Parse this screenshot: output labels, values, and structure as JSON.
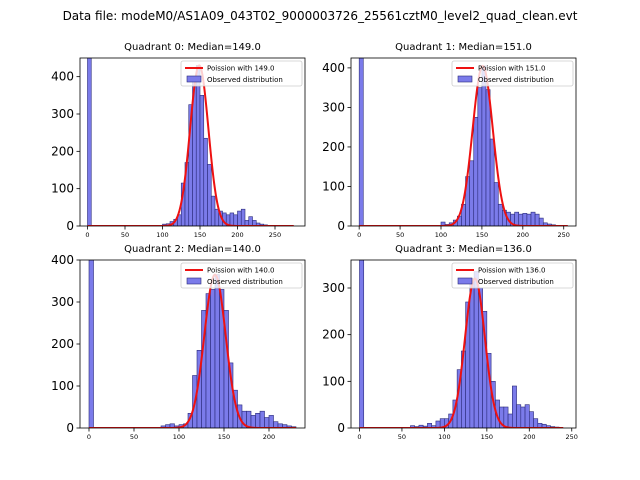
{
  "figure": {
    "suptitle": "Data file: modeM0/AS1A09_043T02_9000003726_25561cztM0_level2_quad_clean.evt"
  },
  "colors": {
    "bar_fill": "#7b7bea",
    "bar_edge": "#2b2b7a",
    "line": "#ee1111"
  },
  "chart_data": [
    {
      "type": "bar",
      "title": "Quadrant 0: Median=149.0",
      "legend": [
        "Poission with 149.0",
        "Observed distribution"
      ],
      "legend_position": "top-right",
      "xlim": [
        -10,
        290
      ],
      "ylim": [
        0,
        450
      ],
      "xticks": [
        0,
        50,
        100,
        150,
        200,
        250
      ],
      "yticks": [
        0,
        100,
        200,
        300,
        400
      ],
      "bin_width": 5,
      "bins": [
        [
          0,
          450
        ],
        [
          100,
          5
        ],
        [
          105,
          6
        ],
        [
          110,
          12
        ],
        [
          115,
          18
        ],
        [
          120,
          30
        ],
        [
          125,
          115
        ],
        [
          130,
          170
        ],
        [
          135,
          325
        ],
        [
          140,
          395
        ],
        [
          145,
          430
        ],
        [
          150,
          350
        ],
        [
          155,
          235
        ],
        [
          160,
          165
        ],
        [
          165,
          80
        ],
        [
          170,
          45
        ],
        [
          175,
          40
        ],
        [
          180,
          35
        ],
        [
          185,
          30
        ],
        [
          190,
          35
        ],
        [
          195,
          30
        ],
        [
          200,
          40
        ],
        [
          205,
          45
        ],
        [
          210,
          15
        ],
        [
          215,
          25
        ],
        [
          220,
          15
        ],
        [
          225,
          8
        ],
        [
          230,
          5
        ],
        [
          235,
          3
        ]
      ],
      "poisson_mean": 149.0,
      "poisson_peak": 430,
      "poisson_range": [
        0,
        275
      ]
    },
    {
      "type": "bar",
      "title": "Quadrant 1: Median=151.0",
      "legend": [
        "Poission with 151.0",
        "Observed distribution"
      ],
      "legend_position": "top-right",
      "xlim": [
        -10,
        265
      ],
      "ylim": [
        0,
        425
      ],
      "xticks": [
        0,
        50,
        100,
        150,
        200,
        250
      ],
      "yticks": [
        0,
        100,
        200,
        300,
        400
      ],
      "bin_width": 5,
      "bins": [
        [
          0,
          425
        ],
        [
          100,
          10
        ],
        [
          105,
          4
        ],
        [
          110,
          8
        ],
        [
          115,
          15
        ],
        [
          120,
          25
        ],
        [
          125,
          55
        ],
        [
          130,
          125
        ],
        [
          135,
          165
        ],
        [
          140,
          275
        ],
        [
          145,
          350
        ],
        [
          150,
          405
        ],
        [
          155,
          345
        ],
        [
          160,
          220
        ],
        [
          165,
          110
        ],
        [
          170,
          55
        ],
        [
          175,
          40
        ],
        [
          180,
          35
        ],
        [
          185,
          30
        ],
        [
          190,
          35
        ],
        [
          195,
          30
        ],
        [
          200,
          32
        ],
        [
          205,
          30
        ],
        [
          210,
          35
        ],
        [
          215,
          30
        ],
        [
          220,
          20
        ],
        [
          225,
          8
        ],
        [
          230,
          5
        ],
        [
          235,
          3
        ]
      ],
      "poisson_mean": 151.0,
      "poisson_peak": 405,
      "poisson_range": [
        0,
        255
      ]
    },
    {
      "type": "bar",
      "title": "Quadrant 2: Median=140.0",
      "legend": [
        "Poission with 140.0",
        "Observed distribution"
      ],
      "legend_position": "top-right",
      "xlim": [
        -10,
        240
      ],
      "ylim": [
        0,
        400
      ],
      "xticks": [
        0,
        50,
        100,
        150,
        200
      ],
      "yticks": [
        0,
        100,
        200,
        300,
        400
      ],
      "bin_width": 5,
      "bins": [
        [
          0,
          400
        ],
        [
          80,
          5
        ],
        [
          85,
          8
        ],
        [
          90,
          10
        ],
        [
          95,
          5
        ],
        [
          100,
          8
        ],
        [
          105,
          10
        ],
        [
          110,
          35
        ],
        [
          115,
          125
        ],
        [
          120,
          185
        ],
        [
          125,
          280
        ],
        [
          130,
          320
        ],
        [
          135,
          330
        ],
        [
          140,
          365
        ],
        [
          145,
          330
        ],
        [
          150,
          280
        ],
        [
          155,
          155
        ],
        [
          160,
          90
        ],
        [
          165,
          55
        ],
        [
          170,
          40
        ],
        [
          175,
          40
        ],
        [
          180,
          30
        ],
        [
          185,
          35
        ],
        [
          190,
          40
        ],
        [
          195,
          25
        ],
        [
          200,
          30
        ],
        [
          205,
          15
        ],
        [
          210,
          10
        ],
        [
          215,
          8
        ],
        [
          220,
          5
        ],
        [
          225,
          3
        ]
      ],
      "poisson_mean": 140.0,
      "poisson_peak": 365,
      "poisson_range": [
        0,
        230
      ]
    },
    {
      "type": "bar",
      "title": "Quadrant 3: Median=136.0",
      "legend": [
        "Poission with 136.0",
        "Observed distribution"
      ],
      "legend_position": "top-right",
      "xlim": [
        -10,
        255
      ],
      "ylim": [
        0,
        360
      ],
      "xticks": [
        0,
        50,
        100,
        150,
        200,
        250
      ],
      "yticks": [
        0,
        100,
        200,
        300
      ],
      "bin_width": 5,
      "bins": [
        [
          0,
          360
        ],
        [
          60,
          5
        ],
        [
          65,
          3
        ],
        [
          70,
          6
        ],
        [
          75,
          4
        ],
        [
          80,
          10
        ],
        [
          85,
          5
        ],
        [
          90,
          15
        ],
        [
          95,
          20
        ],
        [
          100,
          20
        ],
        [
          105,
          30
        ],
        [
          110,
          60
        ],
        [
          115,
          125
        ],
        [
          120,
          165
        ],
        [
          125,
          270
        ],
        [
          130,
          320
        ],
        [
          135,
          335
        ],
        [
          140,
          300
        ],
        [
          145,
          250
        ],
        [
          150,
          160
        ],
        [
          155,
          100
        ],
        [
          160,
          60
        ],
        [
          165,
          45
        ],
        [
          170,
          45
        ],
        [
          175,
          30
        ],
        [
          180,
          90
        ],
        [
          185,
          50
        ],
        [
          190,
          45
        ],
        [
          195,
          50
        ],
        [
          200,
          35
        ],
        [
          205,
          20
        ],
        [
          210,
          10
        ],
        [
          215,
          8
        ],
        [
          220,
          5
        ],
        [
          225,
          3
        ],
        [
          230,
          2
        ]
      ],
      "poisson_mean": 136.0,
      "poisson_peak": 320,
      "poisson_range": [
        0,
        240
      ]
    }
  ]
}
